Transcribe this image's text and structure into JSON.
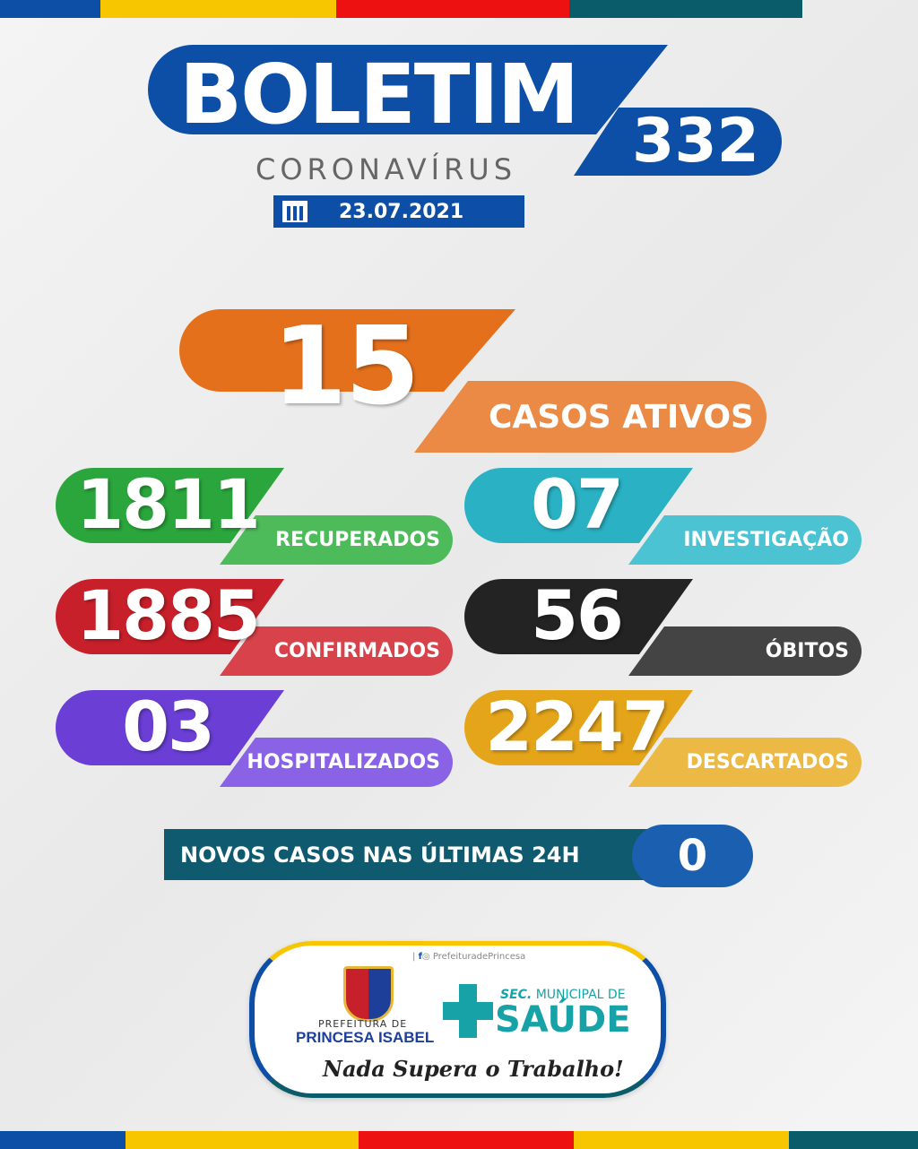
{
  "colors": {
    "blue": "#0d4ea6",
    "yellow": "#f7c600",
    "red": "#ee1111",
    "teal": "#0b5c6a",
    "orange": "#e4701c",
    "green": "#2aa63c",
    "cyan": "#2ab1c4",
    "crimson": "#c8202a",
    "black": "#232323",
    "purple": "#6b3fd6",
    "gold": "#e5a51a"
  },
  "header": {
    "title": "BOLETIM",
    "number": "332",
    "subtitle": "CORONAVÍRUS",
    "date": "23.07.2021",
    "date_icon": "calendar-icon"
  },
  "main": {
    "value": "15",
    "label": "CASOS ATIVOS"
  },
  "stats": [
    {
      "value": "1811",
      "label": "RECUPERADOS"
    },
    {
      "value": "07",
      "label": "INVESTIGAÇÃO"
    },
    {
      "value": "1885",
      "label": "CONFIRMADOS"
    },
    {
      "value": "56",
      "label": "ÓBITOS"
    },
    {
      "value": "03",
      "label": "HOSPITALIZADOS"
    },
    {
      "value": "2247",
      "label": "DESCARTADOS"
    }
  ],
  "new_cases": {
    "label": "NOVOS CASOS NAS ÚLTIMAS 24H",
    "value": "0"
  },
  "footer": {
    "social": "PrefeituradePrincesa",
    "pref_top": "PREFEITURA DE",
    "pref_name": "PRINCESA ISABEL",
    "sec_top_bold": "SEC.",
    "sec_top": "MUNICIPAL DE",
    "sec_name": "SAÚDE",
    "slogan": "Nada Supera o Trabalho!"
  }
}
